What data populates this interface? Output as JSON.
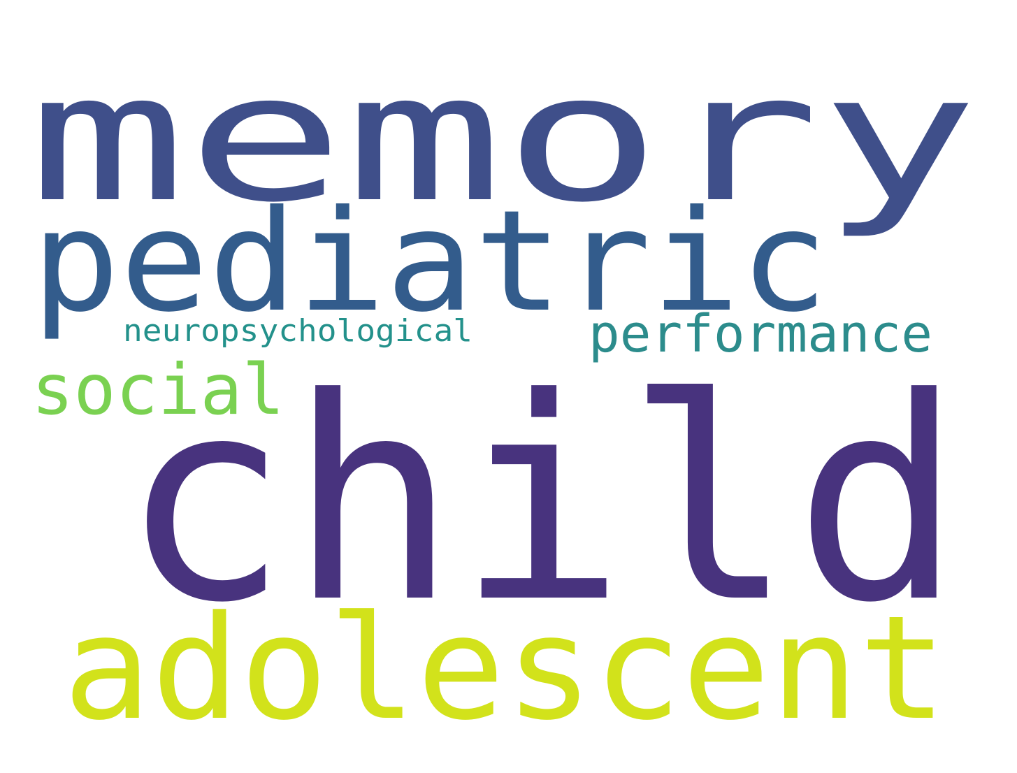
{
  "word_cloud": {
    "words": [
      {
        "key": "memory",
        "text": "memory",
        "color": "#3f4f8a"
      },
      {
        "key": "child",
        "text": "child",
        "color": "#48337e"
      },
      {
        "key": "pediatric",
        "text": "pediatric",
        "color": "#335c8c"
      },
      {
        "key": "adolescent",
        "text": "adolescent",
        "color": "#d2e21b"
      },
      {
        "key": "performance",
        "text": "performance",
        "color": "#2c8c8c"
      },
      {
        "key": "social",
        "text": "social",
        "color": "#7ad151"
      },
      {
        "key": "neuropsychological",
        "text": "neuropsychological",
        "color": "#23918b"
      }
    ]
  }
}
